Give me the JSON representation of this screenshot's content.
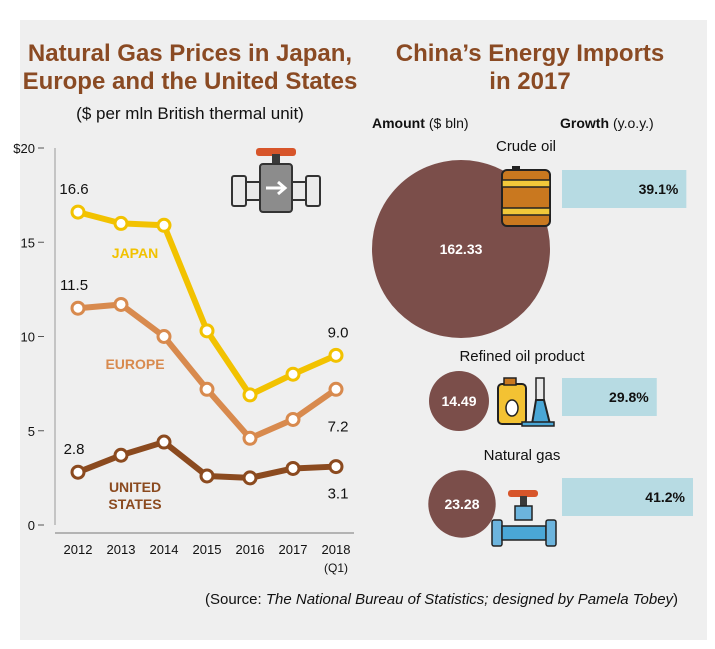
{
  "left": {
    "title_line1": "Natural Gas Prices in Japan,",
    "title_line2": "Europe and the United States",
    "subtitle": "($ per mln British thermal unit)"
  },
  "right": {
    "title_line1": "China’s Energy Imports",
    "title_line2": "in 2017",
    "amount_label": "Amount",
    "amount_unit": "($ bln)",
    "growth_label": "Growth",
    "growth_unit": "(y.o.y.)"
  },
  "source": {
    "prefix": "(Source: ",
    "italic": "The National Bureau of Statistics; designed by Pamela Tobey",
    "suffix": ")"
  },
  "icons": [
    "valve-pipe-icon",
    "oil-barrel-icon",
    "oil-can-and-flask-icon",
    "gas-pipe-valve-icon"
  ],
  "chart_data": [
    {
      "type": "line",
      "title": "Natural Gas Prices in Japan, Europe and the United States",
      "subtitle": "($ per mln British thermal unit)",
      "categories": [
        "2012",
        "2013",
        "2014",
        "2015",
        "2016",
        "2017",
        "2018"
      ],
      "category_sublabels": [
        "",
        "",
        "",
        "",
        "",
        "",
        "(Q1)"
      ],
      "yticks": [
        "$20",
        "15",
        "10",
        "5",
        "0"
      ],
      "ylim": [
        0,
        20
      ],
      "grid": false,
      "series": [
        {
          "name": "JAPAN",
          "values": [
            16.6,
            16.0,
            15.9,
            10.3,
            6.9,
            8.0,
            9.0
          ],
          "color": "#f2c200",
          "first_label": "16.6",
          "last_label": "9.0"
        },
        {
          "name": "EUROPE",
          "values": [
            11.5,
            11.7,
            10.0,
            7.2,
            4.6,
            5.6,
            7.2
          ],
          "color": "#d88a4e",
          "first_label": "11.5",
          "last_label": "7.2"
        },
        {
          "name": "UNITED STATES",
          "values": [
            2.8,
            3.7,
            4.4,
            2.6,
            2.5,
            3.0,
            3.1
          ],
          "color": "#8b4a1f",
          "first_label": "2.8",
          "last_label": "3.1"
        }
      ],
      "series_label_lines": {
        "JAPAN": [
          "JAPAN"
        ],
        "EUROPE": [
          "EUROPE"
        ],
        "UNITED STATES": [
          "UNITED",
          "STATES"
        ]
      }
    },
    {
      "type": "bubble-bar",
      "title": "China’s Energy Imports in 2017",
      "items": [
        {
          "name": "Crude oil",
          "amount": 162.33,
          "amount_label": "162.33",
          "growth": 39.1,
          "growth_label": "39.1%"
        },
        {
          "name": "Refined oil product",
          "amount": 14.49,
          "amount_label": "14.49",
          "growth": 29.8,
          "growth_label": "29.8%"
        },
        {
          "name": "Natural gas",
          "amount": 23.28,
          "amount_label": "23.28",
          "growth": 41.2,
          "growth_label": "41.2%"
        }
      ],
      "bubble_color": "#7b4e4a",
      "bar_color": "#b7dbe3"
    }
  ]
}
